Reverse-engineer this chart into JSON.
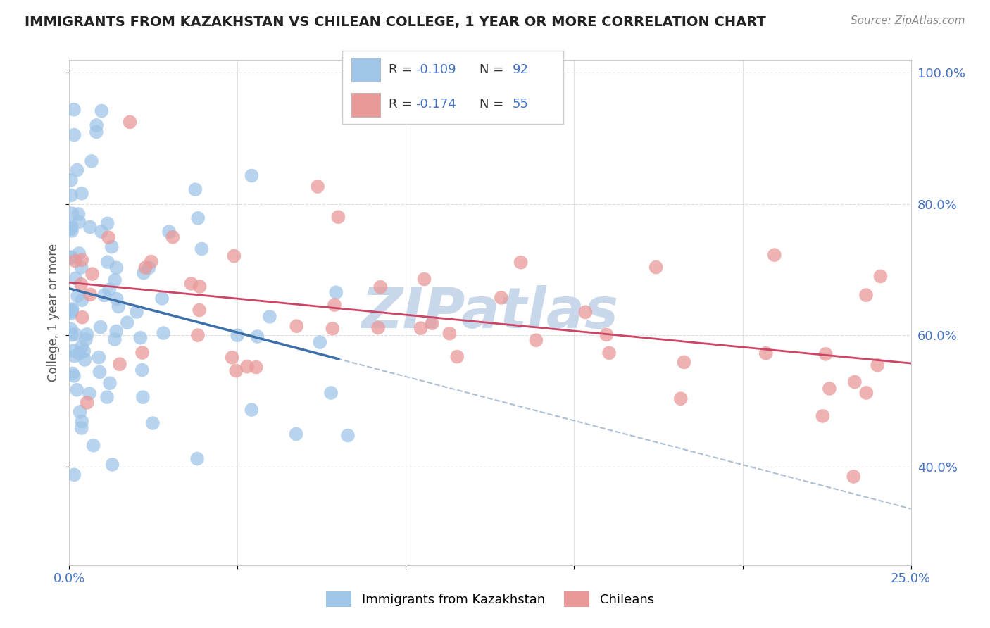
{
  "title": "IMMIGRANTS FROM KAZAKHSTAN VS CHILEAN COLLEGE, 1 YEAR OR MORE CORRELATION CHART",
  "source": "Source: ZipAtlas.com",
  "ylabel": "College, 1 year or more",
  "xlim": [
    0.0,
    0.25
  ],
  "ylim": [
    0.25,
    1.02
  ],
  "legend_label1": "Immigrants from Kazakhstan",
  "legend_label2": "Chileans",
  "R1": -0.109,
  "N1": 92,
  "R2": -0.174,
  "N2": 55,
  "color1": "#9fc5e8",
  "color2": "#ea9999",
  "color1_line": "#3d6fa8",
  "color2_line": "#cc4466",
  "color_dash": "#a0b4cc",
  "watermark": "ZIPatlas",
  "watermark_color": "#c8d8ea",
  "background_color": "#ffffff",
  "grid_color": "#dddddd",
  "title_color": "#222222",
  "source_color": "#888888",
  "axis_label_color": "#555555",
  "tick_color": "#4472c4",
  "legend_R_color": "#222222",
  "legend_N_color": "#4472c4"
}
